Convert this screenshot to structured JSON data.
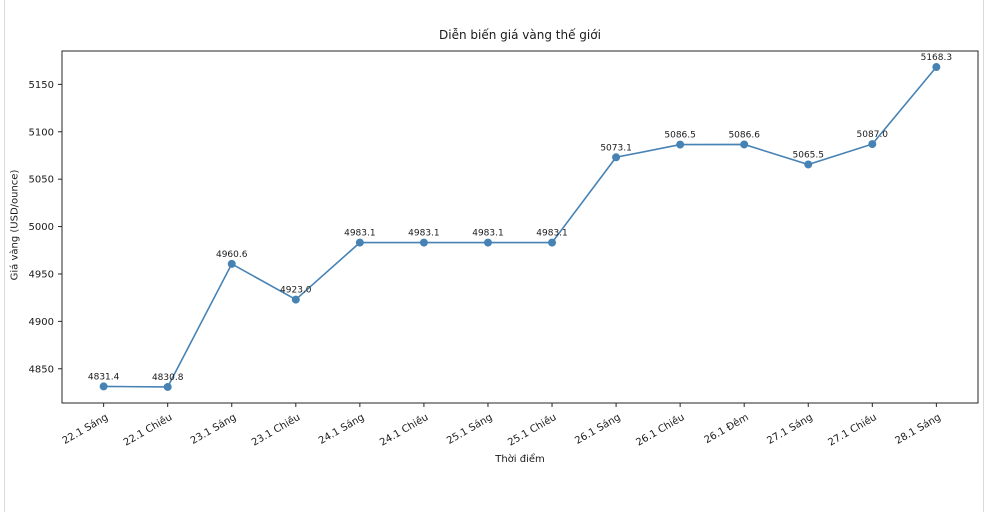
{
  "page": {
    "background": "#ffffff",
    "side_border_color": "#d9d9d9"
  },
  "chart_data": {
    "type": "line",
    "title": "Diễn biến giá vàng thế giới",
    "xlabel": "Thời điểm",
    "ylabel": "Giá vàng (USD/ounce)",
    "categories": [
      "22.1 Sáng",
      "22.1 Chiều",
      "23.1 Sáng",
      "23.1 Chiều",
      "24.1 Sáng",
      "24.1 Chiều",
      "25.1 Sáng",
      "25.1 Chiều",
      "26.1 Sáng",
      "26.1 Chiều",
      "26.1 Đêm",
      "27.1 Sáng",
      "27.1 Chiều",
      "28.1 Sáng"
    ],
    "values": [
      4831.4,
      4830.8,
      4960.6,
      4923.0,
      4983.1,
      4983.1,
      4983.1,
      4983.1,
      5073.1,
      5086.5,
      5086.6,
      5065.5,
      5087.0,
      5168.3
    ],
    "point_labels": [
      "4831.4",
      "4830.8",
      "4960.6",
      "4923.0",
      "4983.1",
      "4983.1",
      "4983.1",
      "4983.1",
      "5073.1",
      "5086.5",
      "5086.6",
      "5065.5",
      "5087.0",
      "5168.3"
    ],
    "yticks": [
      4850,
      4900,
      4950,
      5000,
      5050,
      5100,
      5150
    ],
    "ylim": [
      4813.9,
      5185.2
    ],
    "line_color": "#4682b4",
    "marker": "circle",
    "grid": false,
    "legend": null,
    "text_color": "#1a1a1a",
    "spine_color": "#262626"
  }
}
